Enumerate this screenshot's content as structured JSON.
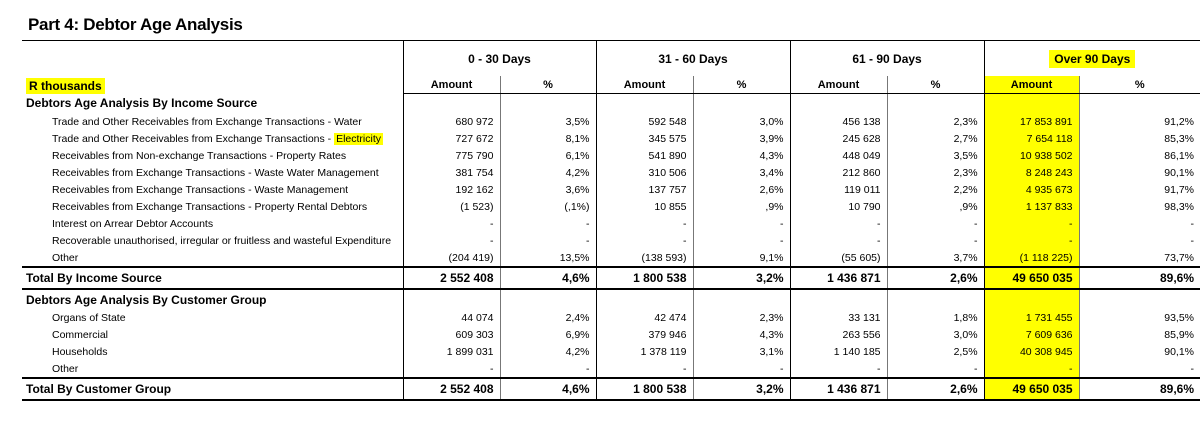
{
  "title": "Part 4: Debtor Age Analysis",
  "unit_label": "R thousands",
  "groups": [
    {
      "label": "0 - 30 Days",
      "amount_header": "Amount",
      "pct_header": "%"
    },
    {
      "label": "31 - 60 Days",
      "amount_header": "Amount",
      "pct_header": "%"
    },
    {
      "label": "61 - 90 Days",
      "amount_header": "Amount",
      "pct_header": "%"
    },
    {
      "label": "Over 90 Days",
      "amount_header": "Amount",
      "pct_header": "%"
    }
  ],
  "sections": [
    {
      "title": "Debtors Age Analysis By Income Source",
      "rows": [
        {
          "label": "Trade and Other Receivables from Exchange Transactions - Water",
          "cells": [
            "680 972",
            "3,5%",
            "592 548",
            "3,0%",
            "456 138",
            "2,3%",
            "17 853 891",
            "91,2%"
          ]
        },
        {
          "label": "Trade and Other Receivables from Exchange Transactions - ",
          "label_highlight": "Electricity",
          "cells": [
            "727 672",
            "8,1%",
            "345 575",
            "3,9%",
            "245 628",
            "2,7%",
            "7 654 118",
            "85,3%"
          ]
        },
        {
          "label": "Receivables from Non-exchange Transactions - Property Rates",
          "cells": [
            "775 790",
            "6,1%",
            "541 890",
            "4,3%",
            "448 049",
            "3,5%",
            "10 938 502",
            "86,1%"
          ]
        },
        {
          "label": "Receivables from Exchange Transactions - Waste Water Management",
          "cells": [
            "381 754",
            "4,2%",
            "310 506",
            "3,4%",
            "212 860",
            "2,3%",
            "8 248 243",
            "90,1%"
          ]
        },
        {
          "label": "Receivables from Exchange Transactions - Waste Management",
          "cells": [
            "192 162",
            "3,6%",
            "137 757",
            "2,6%",
            "119 011",
            "2,2%",
            "4 935 673",
            "91,7%"
          ]
        },
        {
          "label": "Receivables from Exchange Transactions - Property Rental Debtors",
          "cells": [
            "(1 523)",
            "(,1%)",
            "10 855",
            ",9%",
            "10 790",
            ",9%",
            "1 137 833",
            "98,3%"
          ]
        },
        {
          "label": "Interest on Arrear Debtor Accounts",
          "cells": [
            "-",
            "-",
            "-",
            "-",
            "-",
            "-",
            "-",
            "-"
          ]
        },
        {
          "label": "Recoverable unauthorised, irregular or fruitless and wasteful Expenditure",
          "cells": [
            "-",
            "-",
            "-",
            "-",
            "-",
            "-",
            "-",
            "-"
          ]
        },
        {
          "label": "Other",
          "cells": [
            "(204 419)",
            "13,5%",
            "(138 593)",
            "9,1%",
            "(55 605)",
            "3,7%",
            "(1 118 225)",
            "73,7%"
          ]
        }
      ],
      "total": {
        "label": "Total By Income Source",
        "cells": [
          "2 552 408",
          "4,6%",
          "1 800 538",
          "3,2%",
          "1 436 871",
          "2,6%",
          "49 650 035",
          "89,6%"
        ]
      }
    },
    {
      "title": "Debtors Age Analysis By Customer Group",
      "rows": [
        {
          "label": "Organs of State",
          "cells": [
            "44 074",
            "2,4%",
            "42 474",
            "2,3%",
            "33 131",
            "1,8%",
            "1 731 455",
            "93,5%"
          ]
        },
        {
          "label": "Commercial",
          "cells": [
            "609 303",
            "6,9%",
            "379 946",
            "4,3%",
            "263 556",
            "3,0%",
            "7 609 636",
            "85,9%"
          ]
        },
        {
          "label": "Households",
          "cells": [
            "1 899 031",
            "4,2%",
            "1 378 119",
            "3,1%",
            "1 140 185",
            "2,5%",
            "40 308 945",
            "90,1%"
          ]
        },
        {
          "label": "Other",
          "cells": [
            "-",
            "-",
            "-",
            "-",
            "-",
            "-",
            "-",
            "-"
          ]
        }
      ],
      "total": {
        "label": "Total By Customer Group",
        "cells": [
          "2 552 408",
          "4,6%",
          "1 800 538",
          "3,2%",
          "1 436 871",
          "2,6%",
          "49 650 035",
          "89,6%"
        ]
      }
    }
  ]
}
